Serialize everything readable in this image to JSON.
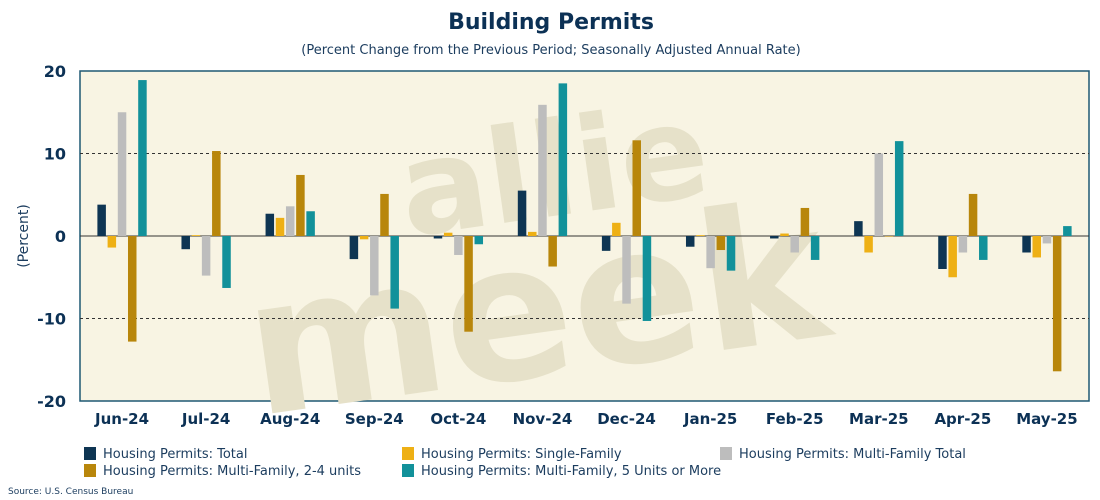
{
  "chart_data": {
    "type": "bar",
    "title": "Building Permits",
    "subtitle": "(Percent Change from the Previous Period; Seasonally Adjusted Annual Rate)",
    "ylabel": "(Percent)",
    "xlabel": "",
    "ylim": [
      -20,
      20
    ],
    "yticks": [
      20,
      10,
      0,
      -10,
      -20
    ],
    "grid": "dashed horizontal lines at 10 and -10",
    "legend_position": "bottom",
    "source": "Source: U.S. Census Bureau",
    "watermark": "allie meek",
    "colors": {
      "plot_background": "#f8f4e3",
      "frame": "#1f5873",
      "title": "#0c3155",
      "text": "#1b3c5e",
      "watermark": "#e6e1c9"
    },
    "categories": [
      "Jun-24",
      "Jul-24",
      "Aug-24",
      "Sep-24",
      "Oct-24",
      "Nov-24",
      "Dec-24",
      "Jan-25",
      "Feb-25",
      "Mar-25",
      "Apr-25",
      "May-25"
    ],
    "series": [
      {
        "name": "Housing Permits: Total",
        "color": "#0e3553",
        "values": [
          3.8,
          -1.6,
          2.7,
          -2.8,
          -0.3,
          5.5,
          -1.8,
          -1.3,
          -0.3,
          1.8,
          -4.0,
          -2.0
        ]
      },
      {
        "name": "Housing Permits: Single-Family",
        "color": "#eeb015",
        "values": [
          -1.4,
          0.1,
          2.2,
          -0.4,
          0.4,
          0.5,
          1.6,
          0.1,
          0.3,
          -2.0,
          -5.0,
          -2.6
        ]
      },
      {
        "name": "Housing Permits: Multi-Family Total",
        "color": "#bdbdbd",
        "values": [
          15.0,
          -4.8,
          3.6,
          -7.2,
          -2.3,
          15.9,
          -8.2,
          -3.9,
          -2.0,
          10.0,
          -2.0,
          -0.9
        ]
      },
      {
        "name": "Housing Permits: Multi-Family, 2-4 units",
        "color": "#b8860b",
        "values": [
          -12.8,
          10.3,
          7.4,
          5.1,
          -11.6,
          -3.7,
          11.6,
          -1.7,
          3.4,
          0.0,
          5.1,
          -16.4
        ]
      },
      {
        "name": "Housing Permits: Multi-Family, 5 Units or More",
        "color": "#12919a",
        "values": [
          18.9,
          -6.3,
          3.0,
          -8.8,
          -1.0,
          18.5,
          -10.3,
          -4.2,
          -2.9,
          11.5,
          -2.9,
          1.2
        ]
      }
    ]
  }
}
